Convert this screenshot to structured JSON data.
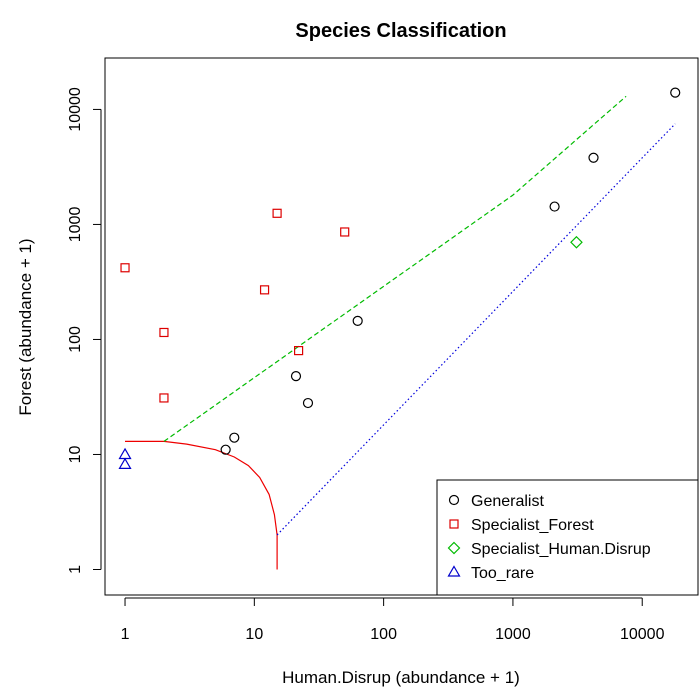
{
  "chart_data": {
    "type": "scatter",
    "title": "Species Classification",
    "xlabel": "Human.Disrup (abundance + 1)",
    "ylabel": "Forest (abundance + 1)",
    "xscale": "log",
    "yscale": "log",
    "xlim": [
      0.7,
      27000
    ],
    "ylim": [
      0.6,
      28000
    ],
    "x_ticks": [
      1,
      10,
      100,
      1000,
      10000
    ],
    "x_tick_labels": [
      "1",
      "10",
      "100",
      "1000",
      "10000"
    ],
    "y_ticks": [
      1,
      10,
      100,
      1000,
      10000
    ],
    "y_tick_labels": [
      "1",
      "10",
      "100",
      "1000",
      "10000"
    ],
    "grid": false,
    "legend_position": "bottom-right",
    "series": [
      {
        "name": "Generalist",
        "marker": "circle",
        "color": "#000000",
        "points": [
          [
            6,
            11
          ],
          [
            7,
            14
          ],
          [
            21,
            48
          ],
          [
            26,
            28
          ],
          [
            63,
            145
          ],
          [
            2100,
            1430
          ],
          [
            4200,
            3800
          ],
          [
            18000,
            14000
          ]
        ]
      },
      {
        "name": "Specialist_Forest",
        "marker": "square",
        "color": "#dd0000",
        "points": [
          [
            1,
            420
          ],
          [
            2,
            115
          ],
          [
            2,
            31
          ],
          [
            12,
            270
          ],
          [
            15,
            1250
          ],
          [
            22,
            80
          ],
          [
            50,
            860
          ]
        ]
      },
      {
        "name": "Specialist_Human.Disrup",
        "marker": "diamond",
        "color": "#00bb00",
        "points": [
          [
            3100,
            700
          ]
        ]
      },
      {
        "name": "Too_rare",
        "marker": "triangle",
        "color": "#0000cc",
        "points": [
          [
            1,
            10
          ],
          [
            1,
            8.2
          ]
        ]
      }
    ],
    "lines": [
      {
        "style": "solid",
        "color": "#ee0000",
        "points": [
          [
            1,
            13
          ],
          [
            2,
            13
          ],
          [
            3,
            12.3
          ],
          [
            5,
            11
          ],
          [
            7,
            9.5
          ],
          [
            9,
            8
          ],
          [
            11,
            6.3
          ],
          [
            13,
            4.5
          ],
          [
            14.3,
            3
          ],
          [
            15,
            2
          ],
          [
            15,
            1
          ]
        ]
      },
      {
        "style": "dashed",
        "color": "#00bb00",
        "points": [
          [
            2,
            13
          ],
          [
            1000,
            1800
          ],
          [
            7500,
            13000
          ]
        ]
      },
      {
        "style": "dotted",
        "color": "#0000dd",
        "points": [
          [
            15,
            2
          ],
          [
            18000,
            7500
          ]
        ]
      }
    ]
  }
}
